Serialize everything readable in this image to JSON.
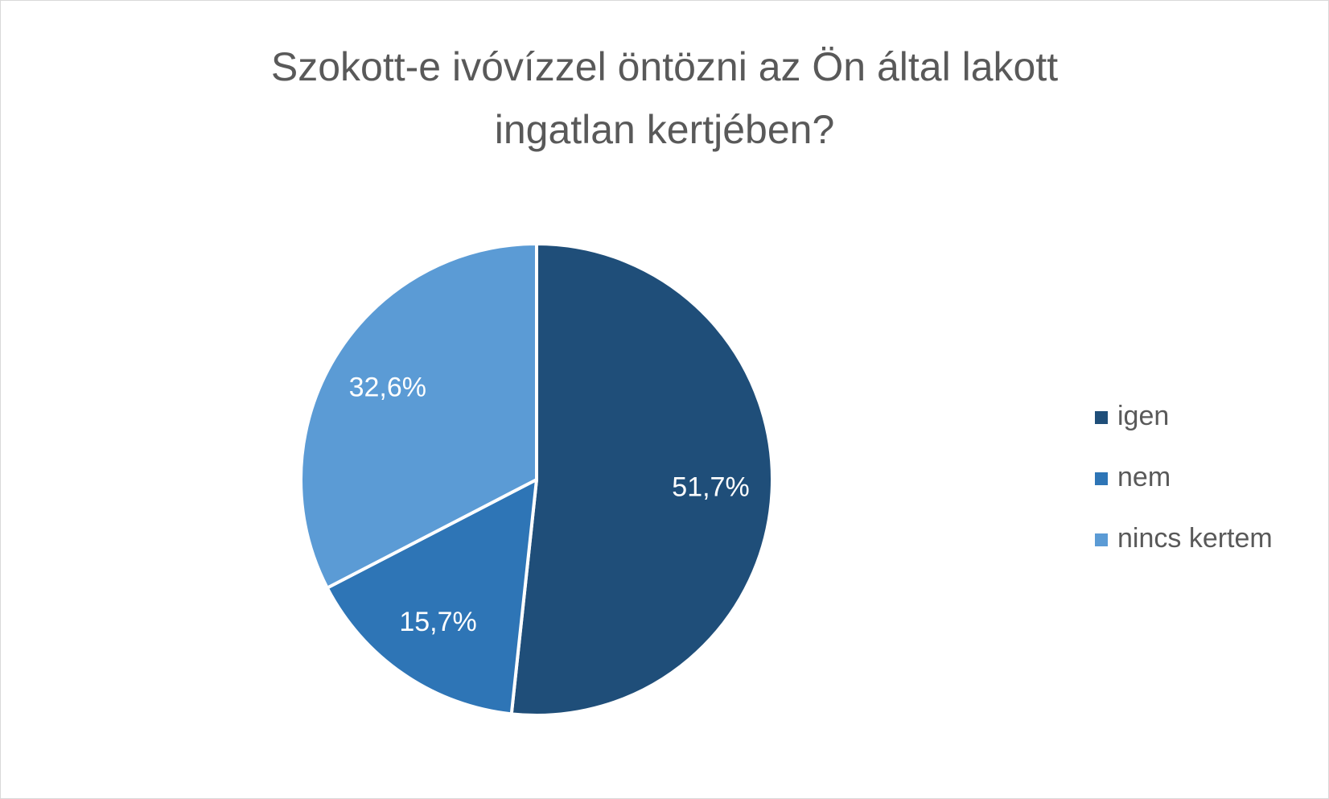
{
  "chart_data": {
    "type": "pie",
    "title": "Szokott-e ivóvízzel öntözni az Ön által lakott ingatlan kertjében?",
    "categories": [
      "igen",
      "nem",
      "nincs kertem"
    ],
    "values": [
      51.7,
      15.7,
      32.6
    ],
    "value_labels": [
      "51,7%",
      "15,7%",
      "32,6%"
    ],
    "colors": [
      "#1f4e79",
      "#2e75b6",
      "#5b9bd5"
    ],
    "legend": "right"
  }
}
